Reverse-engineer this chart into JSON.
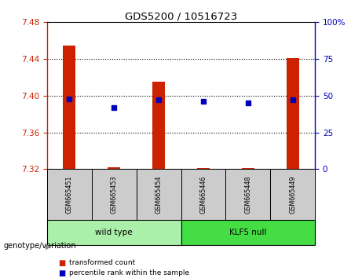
{
  "title": "GDS5200 / 10516723",
  "samples": [
    "GSM665451",
    "GSM665453",
    "GSM665454",
    "GSM665446",
    "GSM665448",
    "GSM665449"
  ],
  "groups": [
    "wild type",
    "wild type",
    "wild type",
    "KLF5 null",
    "KLF5 null",
    "KLF5 null"
  ],
  "group_labels": [
    "wild type",
    "KLF5 null"
  ],
  "wild_type_color": "#aaf0aa",
  "klf5_null_color": "#44dd44",
  "sample_box_color": "#cccccc",
  "red_values": [
    7.455,
    7.322,
    7.415,
    7.321,
    7.321,
    7.441
  ],
  "blue_values": [
    48,
    42,
    47,
    46,
    45,
    47
  ],
  "baseline": 7.32,
  "ylim_left": [
    7.32,
    7.48
  ],
  "ylim_right": [
    0,
    100
  ],
  "yticks_left": [
    7.32,
    7.36,
    7.4,
    7.44,
    7.48
  ],
  "yticks_right": [
    0,
    25,
    50,
    75,
    100
  ],
  "ytick_right_labels": [
    "0",
    "25",
    "50",
    "75",
    "100%"
  ],
  "bar_color": "#cc2200",
  "dot_color": "#0000bb",
  "label_transformed": "transformed count",
  "label_percentile": "percentile rank within the sample",
  "genotype_label": "genotype/variation",
  "bar_width": 0.28,
  "grid_ticks": [
    7.36,
    7.4,
    7.44
  ]
}
